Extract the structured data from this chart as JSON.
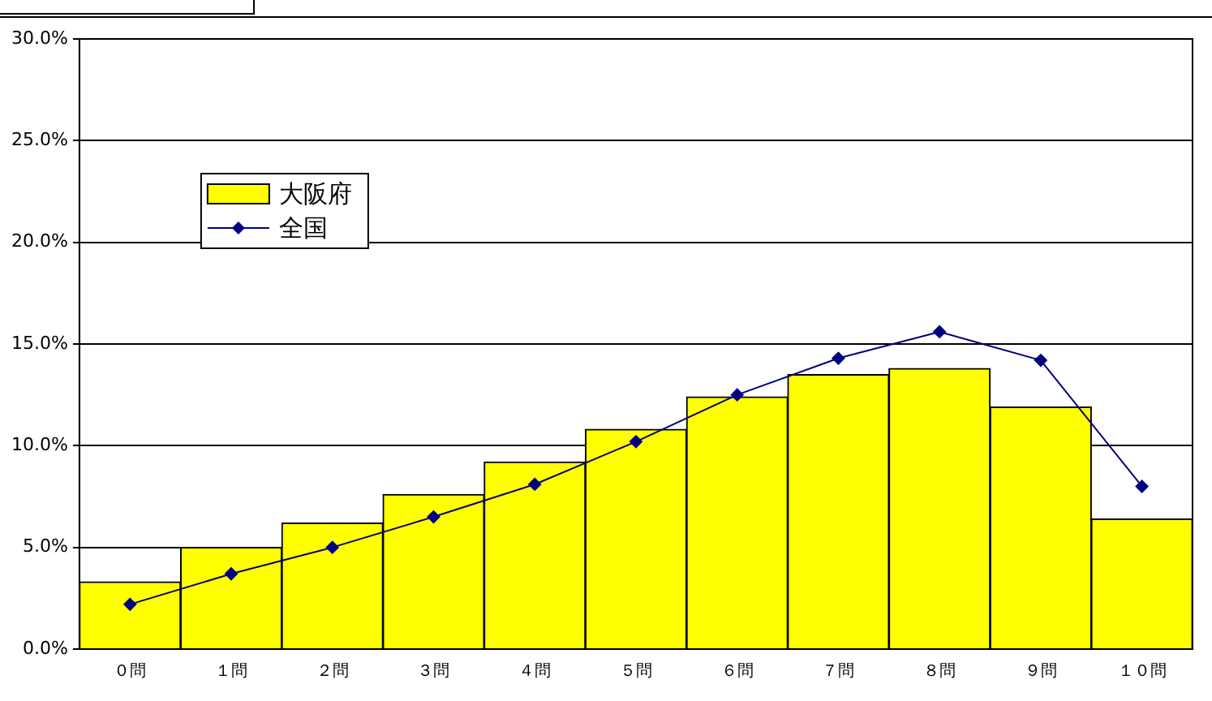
{
  "chart_data": {
    "type": "bar",
    "categories": [
      "０問",
      "１問",
      "２問",
      "３問",
      "４問",
      "５問",
      "６問",
      "７問",
      "８問",
      "９問",
      "１０問"
    ],
    "series": [
      {
        "name": "大阪府",
        "color": "#ffff00",
        "values": [
          3.3,
          5.0,
          6.2,
          7.6,
          9.2,
          10.8,
          12.4,
          13.5,
          13.8,
          11.9,
          6.4
        ]
      },
      {
        "name": "全国",
        "type": "line",
        "color": "#000080",
        "values": [
          2.2,
          3.7,
          5.0,
          6.5,
          8.1,
          10.2,
          12.5,
          14.3,
          15.6,
          14.2,
          8.0
        ]
      }
    ],
    "ylim": [
      0,
      30
    ],
    "yticks": [
      {
        "value": 0,
        "label": "0.0%"
      },
      {
        "value": 5,
        "label": "5.0%"
      },
      {
        "value": 10,
        "label": "10.0%"
      },
      {
        "value": 15,
        "label": "15.0%"
      },
      {
        "value": 20,
        "label": "20.0%"
      },
      {
        "value": 25,
        "label": "25.0%"
      },
      {
        "value": 30,
        "label": "30.0%"
      }
    ],
    "grid": "y",
    "legend": "top left",
    "marker": "diamond",
    "line_style": "solid"
  }
}
